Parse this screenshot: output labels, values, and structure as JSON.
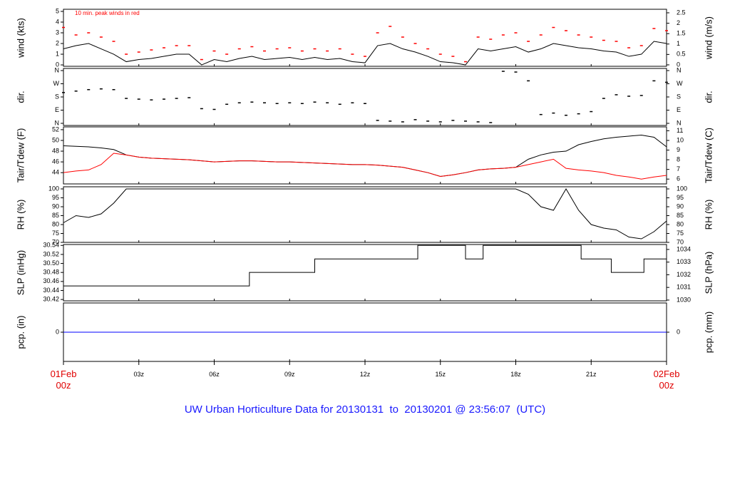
{
  "title": "UW Urban Horticulture Data for 20130131  to  20130201 @ 23:56:07  (UTC)",
  "chart_data": [
    {
      "type": "line",
      "ylabel": "wind (kts)",
      "y2label": "wind (m/s)",
      "annotation": "10 min. peak winds in red",
      "xlim": [
        0,
        24
      ],
      "ylim": [
        -0.13,
        5.2
      ],
      "yticks": [
        0,
        1,
        2,
        3,
        4,
        5
      ],
      "y2lim": [
        -0.07,
        2.67
      ],
      "y2ticks": [
        0,
        0.5,
        1,
        1.5,
        2,
        2.5
      ],
      "series": [
        {
          "style": "line",
          "color": "#000000",
          "x": [
            0,
            0.5,
            1,
            1.5,
            2,
            2.5,
            3,
            3.5,
            4,
            4.5,
            5,
            5.5,
            6,
            6.5,
            7,
            7.5,
            8,
            8.5,
            9,
            9.5,
            10,
            10.5,
            11,
            11.5,
            12,
            12.5,
            13,
            13.5,
            14,
            14.5,
            15,
            15.5,
            16,
            16.5,
            17,
            17.5,
            18,
            18.5,
            19,
            19.5,
            20,
            20.5,
            21,
            21.5,
            22,
            22.5,
            23,
            23.5,
            24
          ],
          "values": [
            1.5,
            1.8,
            2.0,
            1.5,
            1.0,
            0.3,
            0.5,
            0.6,
            0.8,
            1.0,
            1.0,
            0,
            0.5,
            0.3,
            0.6,
            0.8,
            0.5,
            0.6,
            0.7,
            0.5,
            0.7,
            0.5,
            0.6,
            0.3,
            0.2,
            1.8,
            2.0,
            1.5,
            1.2,
            0.8,
            0.3,
            0.2,
            0,
            1.5,
            1.3,
            1.5,
            1.7,
            1.2,
            1.5,
            2.0,
            1.8,
            1.6,
            1.5,
            1.3,
            1.2,
            0.8,
            1.0,
            2.2,
            2.0
          ]
        },
        {
          "style": "dots",
          "color": "#ff0000",
          "x": [
            0,
            0.5,
            1,
            1.5,
            2,
            2.5,
            3,
            3.5,
            4,
            4.5,
            5,
            5.5,
            6,
            6.5,
            7,
            7.5,
            8,
            8.5,
            9,
            9.5,
            10,
            10.5,
            11,
            11.5,
            12,
            12.5,
            13,
            13.5,
            14,
            14.5,
            15,
            15.5,
            16,
            16.5,
            17,
            17.5,
            18,
            18.5,
            19,
            19.5,
            20,
            20.5,
            21,
            21.5,
            22,
            22.5,
            23,
            23.5,
            24
          ],
          "values": [
            3.5,
            2.8,
            3.0,
            2.6,
            2.2,
            1.0,
            1.2,
            1.4,
            1.6,
            1.8,
            1.8,
            0.5,
            1.3,
            1.0,
            1.5,
            1.7,
            1.3,
            1.5,
            1.6,
            1.3,
            1.5,
            1.3,
            1.5,
            1.0,
            0.8,
            3.0,
            3.6,
            2.6,
            2.0,
            1.5,
            1.0,
            0.8,
            0.3,
            2.6,
            2.4,
            2.8,
            3.0,
            2.2,
            2.8,
            3.5,
            3.2,
            2.8,
            2.6,
            2.3,
            2.2,
            1.6,
            1.8,
            3.4,
            3.2
          ]
        }
      ]
    },
    {
      "type": "scatter",
      "ylabel": "dir.",
      "y2label": "dir.",
      "xlim": [
        0,
        24
      ],
      "ylim": [
        -14.6,
        374.6
      ],
      "yticks": [
        {
          "value": 0,
          "label": "N"
        },
        {
          "value": 90,
          "label": "E"
        },
        {
          "value": 180,
          "label": "S"
        },
        {
          "value": 270,
          "label": "W"
        },
        {
          "value": 360,
          "label": "N"
        }
      ],
      "y2lim": [
        -14.6,
        374.6
      ],
      "y2ticks": [
        {
          "value": 0,
          "label": "N"
        },
        {
          "value": 90,
          "label": "E"
        },
        {
          "value": 180,
          "label": "S"
        },
        {
          "value": 270,
          "label": "W"
        },
        {
          "value": 360,
          "label": "N"
        }
      ],
      "series": [
        {
          "style": "dots",
          "color": "#000000",
          "x": [
            0,
            0.5,
            1,
            1.5,
            2,
            2.5,
            3,
            3.5,
            4,
            4.5,
            5,
            5.5,
            6,
            6.5,
            7,
            7.5,
            8,
            8.5,
            9,
            9.5,
            10,
            10.5,
            11,
            11.5,
            12,
            12.5,
            13,
            13.5,
            14,
            14.5,
            15,
            15.5,
            16,
            16.5,
            17,
            17.5,
            18,
            18.5,
            19,
            19.5,
            20,
            20.5,
            21,
            21.5,
            22,
            22.5,
            23,
            23.5,
            24
          ],
          "values": [
            210,
            220,
            230,
            235,
            230,
            170,
            165,
            160,
            165,
            170,
            175,
            100,
            95,
            130,
            140,
            145,
            140,
            135,
            140,
            135,
            145,
            140,
            130,
            140,
            135,
            20,
            15,
            10,
            25,
            15,
            10,
            20,
            15,
            10,
            5,
            355,
            350,
            290,
            60,
            70,
            55,
            65,
            80,
            170,
            195,
            185,
            190,
            290,
            280
          ]
        }
      ]
    },
    {
      "type": "line",
      "ylabel": "Tair/Tdew (F)",
      "y2label": "Tair/Tdew (C)",
      "xlim": [
        0,
        24
      ],
      "ylim": [
        41.9,
        52.52
      ],
      "yticks": [
        44,
        46,
        48,
        50,
        52
      ],
      "y2lim": [
        5.5,
        11.4
      ],
      "y2ticks": [
        6,
        7,
        8,
        9,
        10,
        11
      ],
      "series": [
        {
          "style": "line",
          "color": "#000000",
          "x": [
            0,
            0.5,
            1,
            1.5,
            2,
            2.5,
            3,
            3.5,
            4,
            4.5,
            5,
            5.5,
            6,
            6.5,
            7,
            7.5,
            8,
            8.5,
            9,
            9.5,
            10,
            10.5,
            11,
            11.5,
            12,
            12.5,
            13,
            13.5,
            14,
            14.5,
            15,
            15.5,
            16,
            16.5,
            17,
            17.5,
            18,
            18.5,
            19,
            19.5,
            20,
            20.5,
            21,
            21.5,
            22,
            22.5,
            23,
            23.5,
            24
          ],
          "values": [
            49,
            48.9,
            48.8,
            48.6,
            48.3,
            47.3,
            46.9,
            46.7,
            46.6,
            46.5,
            46.4,
            46.2,
            46.0,
            46.1,
            46.2,
            46.2,
            46.1,
            46.0,
            46.0,
            45.9,
            45.8,
            45.7,
            45.6,
            45.5,
            45.5,
            45.4,
            45.2,
            45.0,
            44.5,
            44.0,
            43.3,
            43.6,
            44.0,
            44.5,
            44.7,
            44.8,
            45.0,
            46.5,
            47.3,
            47.8,
            48.0,
            49.2,
            49.8,
            50.3,
            50.6,
            50.8,
            51.0,
            50.6,
            48.8
          ]
        },
        {
          "style": "line",
          "color": "#ff0000",
          "x": [
            0,
            0.5,
            1,
            1.5,
            2,
            2.5,
            3,
            3.5,
            4,
            4.5,
            5,
            5.5,
            6,
            6.5,
            7,
            7.5,
            8,
            8.5,
            9,
            9.5,
            10,
            10.5,
            11,
            11.5,
            12,
            12.5,
            13,
            13.5,
            14,
            14.5,
            15,
            15.5,
            16,
            16.5,
            17,
            17.5,
            18,
            18.5,
            19,
            19.5,
            20,
            20.5,
            21,
            21.5,
            22,
            22.5,
            23,
            23.5,
            24
          ],
          "values": [
            44.0,
            44.3,
            44.5,
            45.5,
            47.6,
            47.3,
            46.9,
            46.7,
            46.6,
            46.5,
            46.4,
            46.2,
            46.0,
            46.1,
            46.2,
            46.2,
            46.1,
            46.0,
            46.0,
            45.9,
            45.8,
            45.7,
            45.6,
            45.5,
            45.5,
            45.4,
            45.2,
            45.0,
            44.5,
            44.0,
            43.3,
            43.6,
            44.0,
            44.5,
            44.7,
            44.8,
            45.0,
            45.5,
            46.0,
            46.5,
            44.8,
            44.5,
            44.3,
            44.0,
            43.5,
            43.2,
            42.8,
            43.2,
            43.5
          ]
        }
      ]
    },
    {
      "type": "line",
      "ylabel": "RH (%)",
      "y2label": "RH (%)",
      "xlim": [
        0,
        24
      ],
      "ylim": [
        70,
        101.2
      ],
      "yticks": [
        70,
        75,
        80,
        85,
        90,
        95,
        100
      ],
      "y2lim": [
        70,
        101.2
      ],
      "y2ticks": [
        70,
        75,
        80,
        85,
        90,
        95,
        100
      ],
      "series": [
        {
          "style": "line",
          "color": "#000000",
          "x": [
            0,
            0.5,
            1,
            1.5,
            2,
            2.5,
            3,
            3.5,
            4,
            4.5,
            5,
            5.5,
            6,
            6.5,
            7,
            7.5,
            8,
            8.5,
            9,
            9.5,
            10,
            10.5,
            11,
            11.5,
            12,
            12.5,
            13,
            13.5,
            14,
            14.5,
            15,
            15.5,
            16,
            16.5,
            17,
            17.5,
            18,
            18.5,
            19,
            19.5,
            20,
            20.5,
            21,
            21.5,
            22,
            22.5,
            23,
            23.5,
            24
          ],
          "values": [
            81,
            85,
            84,
            86,
            92,
            100,
            100,
            100,
            100,
            100,
            100,
            100,
            100,
            100,
            100,
            100,
            100,
            100,
            100,
            100,
            100,
            100,
            100,
            100,
            100,
            100,
            100,
            100,
            100,
            100,
            100,
            100,
            100,
            100,
            100,
            100,
            100,
            97,
            90,
            88,
            100,
            88,
            80,
            78,
            77,
            73,
            72,
            76,
            82
          ]
        }
      ]
    },
    {
      "type": "step",
      "ylabel": "SLP (inHg)",
      "y2label": "SLP (hPa)",
      "xlim": [
        0,
        24
      ],
      "ylim": [
        30.417,
        30.542
      ],
      "yticks": [
        30.42,
        30.44,
        30.46,
        30.48,
        {
          "value": 30.5,
          "label": "30.50"
        },
        30.52,
        30.54
      ],
      "y2lim": [
        1029.94,
        1034.39
      ],
      "y2ticks": [
        1030,
        1031,
        1032,
        1033,
        1034
      ],
      "series": [
        {
          "style": "step",
          "color": "#000000",
          "x": [
            0,
            7.4,
            10,
            14.1,
            16,
            16.7,
            20.6,
            21.8,
            23.1,
            24
          ],
          "values": [
            30.45,
            30.48,
            30.51,
            30.54,
            30.51,
            30.54,
            30.51,
            30.48,
            30.51,
            30.51
          ]
        }
      ]
    },
    {
      "type": "line",
      "ylabel": "pcp. (in)",
      "y2label": "pcp. (mm)",
      "xlim": [
        0,
        24
      ],
      "ylim": [
        -1,
        1
      ],
      "yticks": [
        0
      ],
      "y2lim": [
        -1,
        1
      ],
      "y2ticks": [
        0
      ],
      "xticks": [
        {
          "value": 0,
          "label": "01Feb\n00z"
        },
        {
          "value": 3,
          "label": "03z"
        },
        {
          "value": 6,
          "label": "06z"
        },
        {
          "value": 9,
          "label": "09z"
        },
        {
          "value": 12,
          "label": "12z"
        },
        {
          "value": 15,
          "label": "15z"
        },
        {
          "value": 18,
          "label": "18z"
        },
        {
          "value": 21,
          "label": "21z"
        },
        {
          "value": 24,
          "label": "02Feb\n00z"
        }
      ],
      "series": [
        {
          "style": "line",
          "color": "#0000ff",
          "x": [
            0,
            24
          ],
          "values": [
            0,
            0
          ]
        }
      ]
    }
  ]
}
